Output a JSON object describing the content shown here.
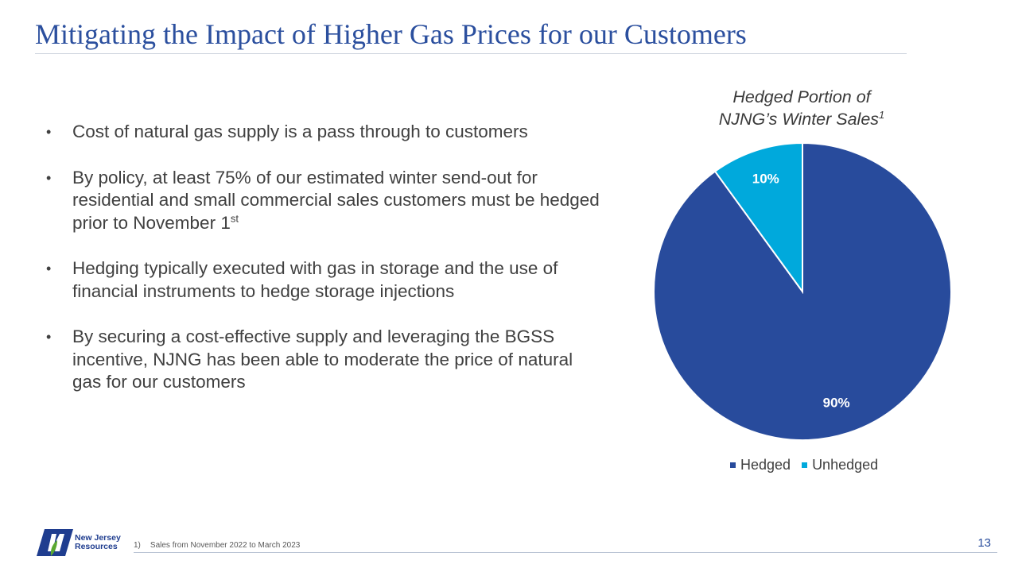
{
  "slide": {
    "title": "Mitigating the Impact of Higher Gas Prices for our Customers",
    "page_number": "13"
  },
  "bullets": [
    {
      "text": "Cost of natural gas supply is a pass through to customers"
    },
    {
      "text": "By policy, at least 75% of our estimated winter send-out for residential and small commercial sales customers must be hedged prior to November 1",
      "sup": "st"
    },
    {
      "text": "Hedging typically executed with gas in storage and the use of financial instruments to hedge storage injections"
    },
    {
      "text": "By securing a cost-effective supply and leveraging the BGSS incentive, NJNG has been able to moderate the price of natural gas for our customers"
    }
  ],
  "bullet_symbol": "•",
  "chart_data": {
    "type": "pie",
    "title": "Hedged Portion of NJNG’s Winter Sales",
    "title_line1": "Hedged Portion of",
    "title_line2": "NJNG’s Winter Sales",
    "title_sup": "1",
    "categories": [
      "Hedged",
      "Unhedged"
    ],
    "values": [
      90,
      10
    ],
    "data_labels": [
      "90%",
      "10%"
    ],
    "colors": [
      "#284b9c",
      "#00a9dc"
    ],
    "legend_placement": "bottom"
  },
  "logo": {
    "line1": "New Jersey",
    "line2": "Resources",
    "colors": {
      "navy": "#1f3d8f",
      "green": "#5aa832"
    }
  },
  "footnote": {
    "number": "1)",
    "text": "Sales from November 2022 to March 2023"
  },
  "colors": {
    "title": "#2b4f9e",
    "body_text": "#404040"
  }
}
